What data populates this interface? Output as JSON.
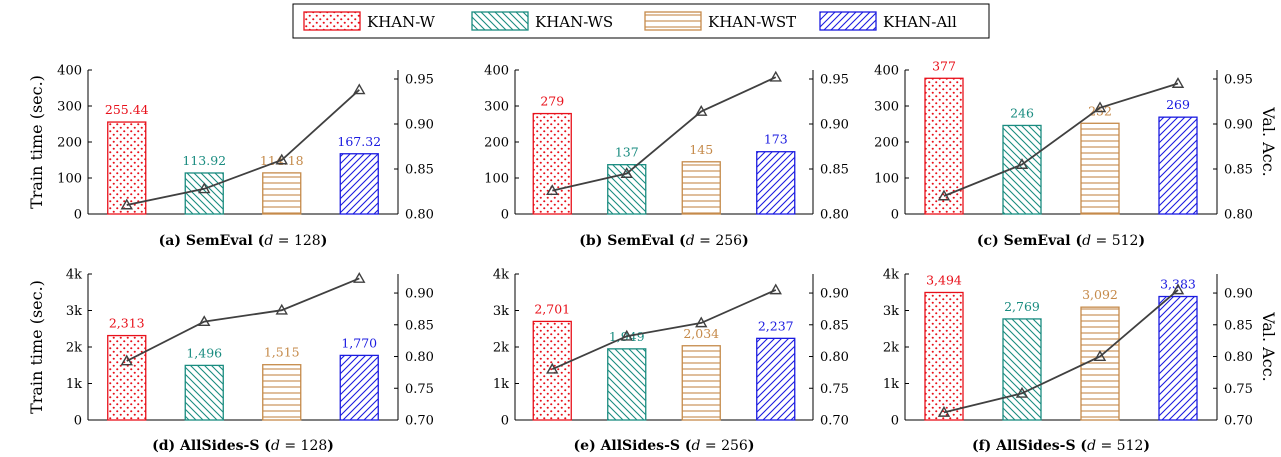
{
  "legend": [
    {
      "name": "KHAN-W",
      "color": "#e8101a",
      "pattern": "dots"
    },
    {
      "name": "KHAN-WS",
      "color": "#1a8c80",
      "pattern": "diag-back"
    },
    {
      "name": "KHAN-WST",
      "color": "#c58a4a",
      "pattern": "hlines"
    },
    {
      "name": "KHAN-All",
      "color": "#1b1be0",
      "pattern": "diag-fwd"
    }
  ],
  "chart_data": [
    {
      "type": "bar",
      "caption": {
        "id": "(a)",
        "dataset": "SemEval",
        "var": "d",
        "value": "128"
      },
      "categories": [
        "KHAN-W",
        "KHAN-WS",
        "KHAN-WST",
        "KHAN-All"
      ],
      "values": [
        255.44,
        113.92,
        114.18,
        167.32
      ],
      "value_labels": [
        "255.44",
        "113.92",
        "114.18",
        "167.32"
      ],
      "ylim": [
        0,
        400
      ],
      "yticks": [
        0,
        100,
        200,
        300,
        400
      ],
      "ytick_labels": [
        "0",
        "100",
        "200",
        "300",
        "400"
      ],
      "ylabel": "Train time (sec.)",
      "line": {
        "values": [
          0.81,
          0.828,
          0.86,
          0.938
        ]
      },
      "y2lim": [
        0.8,
        0.96
      ],
      "y2ticks": [
        0.8,
        0.85,
        0.9,
        0.95
      ],
      "y2tick_labels": [
        "0.80",
        "0.85",
        "0.90",
        "0.95"
      ],
      "y2label": ""
    },
    {
      "type": "bar",
      "caption": {
        "id": "(b)",
        "dataset": "SemEval",
        "var": "d",
        "value": "256"
      },
      "categories": [
        "KHAN-W",
        "KHAN-WS",
        "KHAN-WST",
        "KHAN-All"
      ],
      "values": [
        279,
        137,
        145,
        173
      ],
      "value_labels": [
        "279",
        "137",
        "145",
        "173"
      ],
      "ylim": [
        0,
        400
      ],
      "yticks": [
        0,
        100,
        200,
        300,
        400
      ],
      "ytick_labels": [
        "0",
        "100",
        "200",
        "300",
        "400"
      ],
      "ylabel": "",
      "line": {
        "values": [
          0.826,
          0.845,
          0.914,
          0.952
        ]
      },
      "y2lim": [
        0.8,
        0.96
      ],
      "y2ticks": [
        0.8,
        0.85,
        0.9,
        0.95
      ],
      "y2tick_labels": [
        "0.80",
        "0.85",
        "0.90",
        "0.95"
      ],
      "y2label": ""
    },
    {
      "type": "bar",
      "caption": {
        "id": "(c)",
        "dataset": "SemEval",
        "var": "d",
        "value": "512"
      },
      "categories": [
        "KHAN-W",
        "KHAN-WS",
        "KHAN-WST",
        "KHAN-All"
      ],
      "values": [
        377,
        246,
        252,
        269
      ],
      "value_labels": [
        "377",
        "246",
        "252",
        "269"
      ],
      "ylim": [
        0,
        400
      ],
      "yticks": [
        0,
        100,
        200,
        300,
        400
      ],
      "ytick_labels": [
        "0",
        "100",
        "200",
        "300",
        "400"
      ],
      "ylabel": "",
      "line": {
        "values": [
          0.82,
          0.855,
          0.918,
          0.945
        ]
      },
      "y2lim": [
        0.8,
        0.96
      ],
      "y2ticks": [
        0.8,
        0.85,
        0.9,
        0.95
      ],
      "y2tick_labels": [
        "0.80",
        "0.85",
        "0.90",
        "0.95"
      ],
      "y2label": "Val. Acc."
    },
    {
      "type": "bar",
      "caption": {
        "id": "(d)",
        "dataset": "AllSides-S",
        "var": "d",
        "value": "128"
      },
      "categories": [
        "KHAN-W",
        "KHAN-WS",
        "KHAN-WST",
        "KHAN-All"
      ],
      "values": [
        2313,
        1496,
        1515,
        1770
      ],
      "value_labels": [
        "2,313",
        "1,496",
        "1,515",
        "1,770"
      ],
      "ylim": [
        0,
        4000
      ],
      "yticks": [
        0,
        1000,
        2000,
        3000,
        4000
      ],
      "ytick_labels": [
        "0",
        "1k",
        "2k",
        "3k",
        "4k"
      ],
      "ylabel": "Train time (sec.)",
      "line": {
        "values": [
          0.793,
          0.855,
          0.873,
          0.923
        ]
      },
      "y2lim": [
        0.7,
        0.93
      ],
      "y2ticks": [
        0.7,
        0.75,
        0.8,
        0.85,
        0.9
      ],
      "y2tick_labels": [
        "0.70",
        "0.75",
        "0.80",
        "0.85",
        "0.90"
      ],
      "y2label": ""
    },
    {
      "type": "bar",
      "caption": {
        "id": "(e)",
        "dataset": "AllSides-S",
        "var": "d",
        "value": "256"
      },
      "categories": [
        "KHAN-W",
        "KHAN-WS",
        "KHAN-WST",
        "KHAN-All"
      ],
      "values": [
        2701,
        1949,
        2034,
        2237
      ],
      "value_labels": [
        "2,701",
        "1,949",
        "2,034",
        "2,237"
      ],
      "ylim": [
        0,
        4000
      ],
      "yticks": [
        0,
        1000,
        2000,
        3000,
        4000
      ],
      "ytick_labels": [
        "0",
        "1k",
        "2k",
        "3k",
        "4k"
      ],
      "ylabel": "",
      "line": {
        "values": [
          0.78,
          0.832,
          0.853,
          0.905
        ]
      },
      "y2lim": [
        0.7,
        0.93
      ],
      "y2ticks": [
        0.7,
        0.75,
        0.8,
        0.85,
        0.9
      ],
      "y2tick_labels": [
        "0.70",
        "0.75",
        "0.80",
        "0.85",
        "0.90"
      ],
      "y2label": ""
    },
    {
      "type": "bar",
      "caption": {
        "id": "(f)",
        "dataset": "AllSides-S",
        "var": "d",
        "value": "512"
      },
      "categories": [
        "KHAN-W",
        "KHAN-WS",
        "KHAN-WST",
        "KHAN-All"
      ],
      "values": [
        3494,
        2769,
        3092,
        3383
      ],
      "value_labels": [
        "3,494",
        "2,769",
        "3,092",
        "3,383"
      ],
      "ylim": [
        0,
        4000
      ],
      "yticks": [
        0,
        1000,
        2000,
        3000,
        4000
      ],
      "ytick_labels": [
        "0",
        "1k",
        "2k",
        "3k",
        "4k"
      ],
      "ylabel": "",
      "line": {
        "values": [
          0.712,
          0.742,
          0.8,
          0.905
        ]
      },
      "y2lim": [
        0.7,
        0.93
      ],
      "y2ticks": [
        0.7,
        0.75,
        0.8,
        0.85,
        0.9
      ],
      "y2tick_labels": [
        "0.70",
        "0.75",
        "0.80",
        "0.85",
        "0.90"
      ],
      "y2label": "Val. Acc."
    }
  ]
}
